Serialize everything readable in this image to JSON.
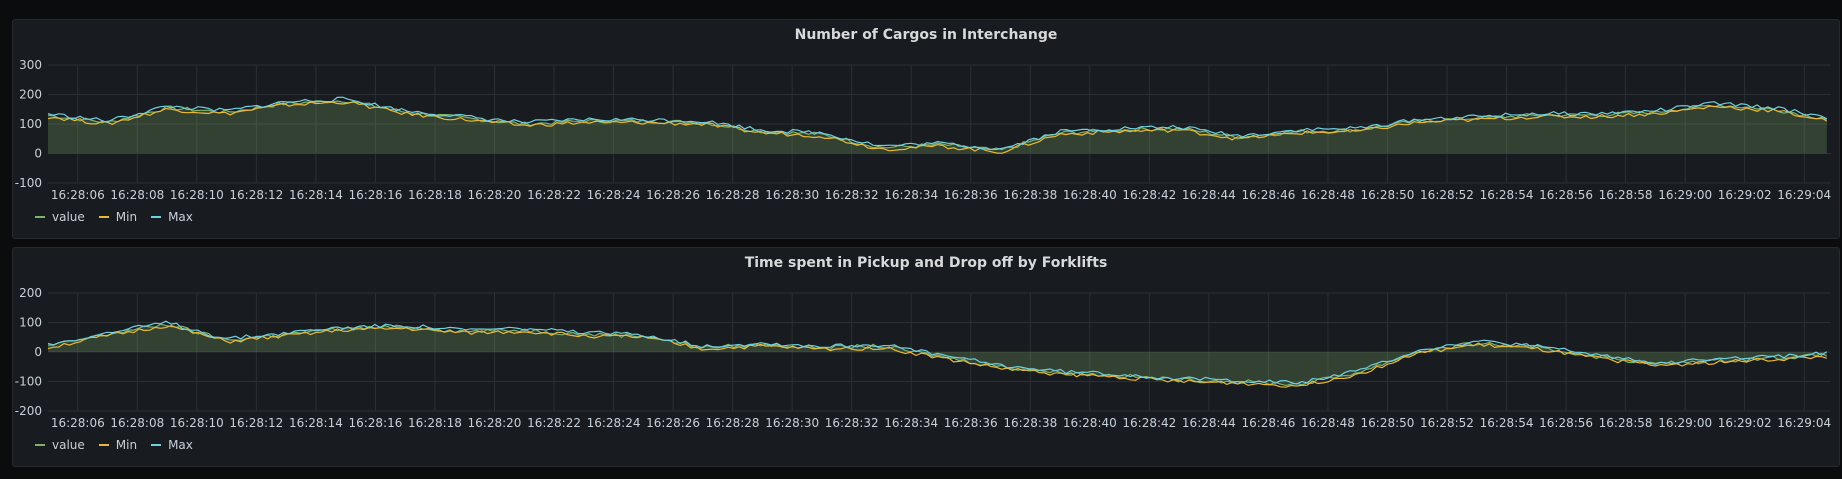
{
  "chart_data": [
    {
      "type": "line",
      "title": "Number of Cargos in Interchange",
      "xlabel": "",
      "ylabel": "",
      "ylim": [
        -100,
        300
      ],
      "y_ticks": [
        -100,
        0,
        100,
        200,
        300
      ],
      "x_tick_labels": [
        "16:28:06",
        "16:28:08",
        "16:28:10",
        "16:28:12",
        "16:28:14",
        "16:28:16",
        "16:28:18",
        "16:28:20",
        "16:28:22",
        "16:28:24",
        "16:28:26",
        "16:28:28",
        "16:28:30",
        "16:28:32",
        "16:28:34",
        "16:28:36",
        "16:28:38",
        "16:28:40",
        "16:28:42",
        "16:28:44",
        "16:28:46",
        "16:28:48",
        "16:28:50",
        "16:28:52",
        "16:28:54",
        "16:28:56",
        "16:28:58",
        "16:29:00",
        "16:29:02",
        "16:29:04"
      ],
      "x_range_seconds": [
        5.0,
        64.9
      ],
      "grid": true,
      "legend_position": "bottom-left",
      "x": [
        5,
        7,
        9,
        11,
        13,
        15,
        17,
        19,
        21,
        23,
        25,
        27,
        29,
        31,
        33,
        35,
        37,
        39,
        41,
        43,
        45,
        47,
        49,
        51,
        53,
        55,
        57,
        59,
        61,
        63,
        64.9
      ],
      "series": [
        {
          "name": "value",
          "color": "#7eb26d",
          "filled": true,
          "values": [
            130,
            105,
            155,
            140,
            170,
            180,
            140,
            120,
            100,
            110,
            110,
            105,
            75,
            65,
            20,
            30,
            10,
            70,
            80,
            85,
            55,
            75,
            80,
            110,
            120,
            130,
            130,
            140,
            165,
            150,
            115
          ]
        },
        {
          "name": "Min",
          "color": "#eab839",
          "values": [
            125,
            100,
            150,
            135,
            165,
            175,
            135,
            115,
            95,
            105,
            105,
            100,
            70,
            60,
            15,
            25,
            5,
            65,
            75,
            80,
            50,
            70,
            75,
            105,
            115,
            125,
            125,
            135,
            160,
            145,
            110
          ]
        },
        {
          "name": "Max",
          "color": "#6ed0e0",
          "values": [
            135,
            110,
            160,
            145,
            175,
            185,
            145,
            125,
            105,
            115,
            115,
            110,
            80,
            70,
            25,
            35,
            15,
            75,
            85,
            90,
            60,
            80,
            85,
            115,
            125,
            135,
            135,
            145,
            170,
            155,
            120
          ]
        }
      ]
    },
    {
      "type": "line",
      "title": "Time spent in Pickup and Drop off by Forklifts",
      "xlabel": "",
      "ylabel": "",
      "ylim": [
        -200,
        200
      ],
      "y_ticks": [
        -200,
        -100,
        0,
        100,
        200
      ],
      "x_tick_labels": [
        "16:28:06",
        "16:28:08",
        "16:28:10",
        "16:28:12",
        "16:28:14",
        "16:28:16",
        "16:28:18",
        "16:28:20",
        "16:28:22",
        "16:28:24",
        "16:28:26",
        "16:28:28",
        "16:28:30",
        "16:28:32",
        "16:28:34",
        "16:28:36",
        "16:28:38",
        "16:28:40",
        "16:28:42",
        "16:28:44",
        "16:28:46",
        "16:28:48",
        "16:28:50",
        "16:28:52",
        "16:28:54",
        "16:28:56",
        "16:28:58",
        "16:29:00",
        "16:29:02",
        "16:29:04"
      ],
      "x_range_seconds": [
        5.0,
        64.9
      ],
      "grid": true,
      "legend_position": "bottom-left",
      "x": [
        5,
        7,
        9,
        11,
        13,
        15,
        17,
        19,
        21,
        23,
        25,
        27,
        29,
        31,
        33,
        35,
        37,
        39,
        41,
        43,
        45,
        47,
        49,
        51,
        53,
        55,
        57,
        59,
        61,
        63,
        64.9
      ],
      "series": [
        {
          "name": "value",
          "color": "#7eb26d",
          "filled": true,
          "values": [
            20,
            60,
            95,
            40,
            60,
            80,
            85,
            70,
            75,
            60,
            55,
            15,
            25,
            15,
            20,
            -15,
            -50,
            -70,
            -80,
            -95,
            -100,
            -110,
            -70,
            0,
            30,
            15,
            -15,
            -40,
            -30,
            -20,
            -10
          ]
        },
        {
          "name": "Min",
          "color": "#eab839",
          "values": [
            15,
            55,
            90,
            35,
            55,
            75,
            80,
            65,
            70,
            55,
            50,
            10,
            20,
            10,
            15,
            -20,
            -55,
            -75,
            -85,
            -100,
            -105,
            -115,
            -75,
            -5,
            25,
            10,
            -20,
            -45,
            -35,
            -25,
            -15
          ]
        },
        {
          "name": "Max",
          "color": "#6ed0e0",
          "values": [
            25,
            65,
            100,
            45,
            65,
            85,
            90,
            75,
            80,
            65,
            60,
            20,
            30,
            20,
            25,
            -10,
            -45,
            -65,
            -75,
            -90,
            -95,
            -105,
            -65,
            5,
            35,
            20,
            -10,
            -35,
            -25,
            -15,
            -5
          ]
        }
      ]
    }
  ],
  "legend_labels": [
    "value",
    "Min",
    "Max"
  ]
}
